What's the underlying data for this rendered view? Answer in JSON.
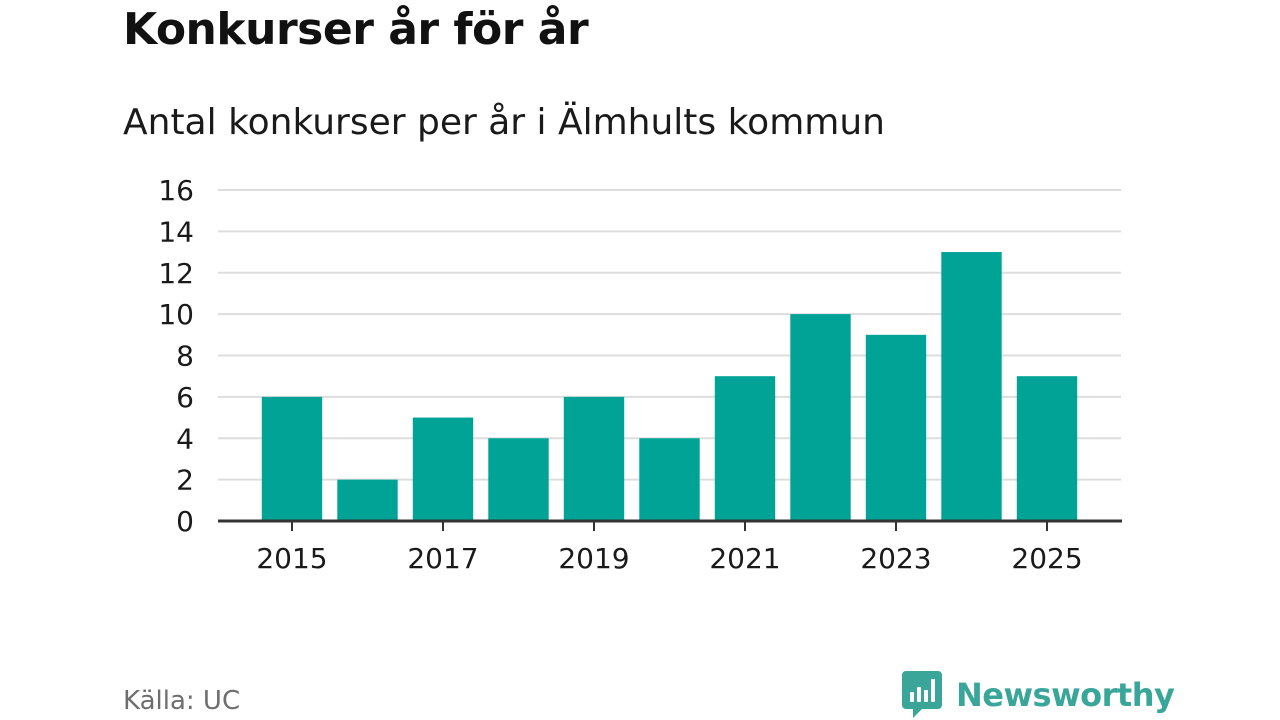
{
  "header": {
    "title": "Konkurser år för år",
    "subtitle": "Antal konkurser per år i Älmhults kommun"
  },
  "footer": {
    "source": "Källa: UC",
    "brand": "Newsworthy"
  },
  "colors": {
    "bar": "#00a396",
    "grid": "#dddddd",
    "axis": "#333333",
    "brand": "#3aa69a"
  },
  "icons": {
    "logo": "newsworthy-logo-icon"
  },
  "chart_data": {
    "type": "bar",
    "categories": [
      "2015",
      "2016",
      "2017",
      "2018",
      "2019",
      "2020",
      "2021",
      "2022",
      "2023",
      "2024",
      "2025"
    ],
    "values": [
      6,
      2,
      5,
      4,
      6,
      4,
      7,
      10,
      9,
      13,
      7
    ],
    "x_tick_labels": [
      "2015",
      "2017",
      "2019",
      "2021",
      "2023",
      "2025"
    ],
    "y_ticks": [
      0,
      2,
      4,
      6,
      8,
      10,
      12,
      14,
      16
    ],
    "ylim": [
      0,
      16
    ],
    "xlabel": "",
    "ylabel": "",
    "grid": true,
    "legend": "none"
  }
}
